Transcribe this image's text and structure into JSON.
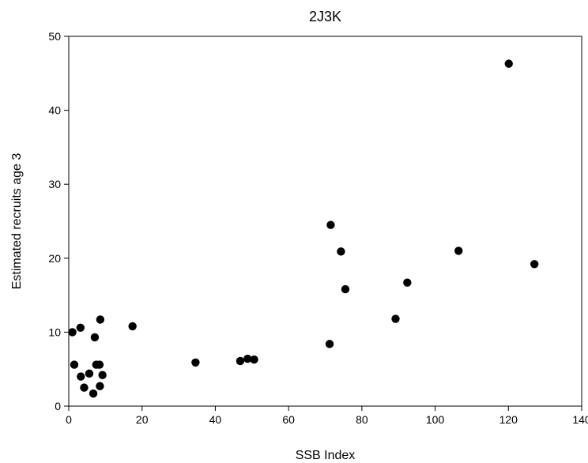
{
  "chart_data": {
    "type": "scatter",
    "title": "2J3K",
    "xlabel": "SSB Index",
    "ylabel": "Estimated recruits age 3",
    "xlim": [
      0,
      140
    ],
    "ylim": [
      0,
      50
    ],
    "xticks": [
      0,
      20,
      40,
      60,
      80,
      100,
      120,
      140
    ],
    "yticks": [
      0,
      10,
      20,
      30,
      40,
      50
    ],
    "grid": false,
    "marker_color": "#000000",
    "points": [
      {
        "x": 1.0,
        "y": 10.0
      },
      {
        "x": 1.5,
        "y": 5.6
      },
      {
        "x": 3.2,
        "y": 10.6
      },
      {
        "x": 3.3,
        "y": 4.0
      },
      {
        "x": 4.2,
        "y": 2.5
      },
      {
        "x": 5.6,
        "y": 4.4
      },
      {
        "x": 6.7,
        "y": 1.7
      },
      {
        "x": 7.1,
        "y": 9.3
      },
      {
        "x": 7.5,
        "y": 5.6
      },
      {
        "x": 8.4,
        "y": 5.6
      },
      {
        "x": 8.5,
        "y": 2.7
      },
      {
        "x": 8.6,
        "y": 11.7
      },
      {
        "x": 9.2,
        "y": 4.2
      },
      {
        "x": 17.4,
        "y": 10.8
      },
      {
        "x": 34.6,
        "y": 5.9
      },
      {
        "x": 46.8,
        "y": 6.1
      },
      {
        "x": 48.8,
        "y": 6.4
      },
      {
        "x": 50.6,
        "y": 6.3
      },
      {
        "x": 71.2,
        "y": 8.4
      },
      {
        "x": 71.5,
        "y": 24.5
      },
      {
        "x": 74.3,
        "y": 20.9
      },
      {
        "x": 75.5,
        "y": 15.8
      },
      {
        "x": 89.2,
        "y": 11.8
      },
      {
        "x": 92.4,
        "y": 16.7
      },
      {
        "x": 106.4,
        "y": 21.0
      },
      {
        "x": 120.1,
        "y": 46.3
      },
      {
        "x": 127.1,
        "y": 19.2
      }
    ]
  }
}
